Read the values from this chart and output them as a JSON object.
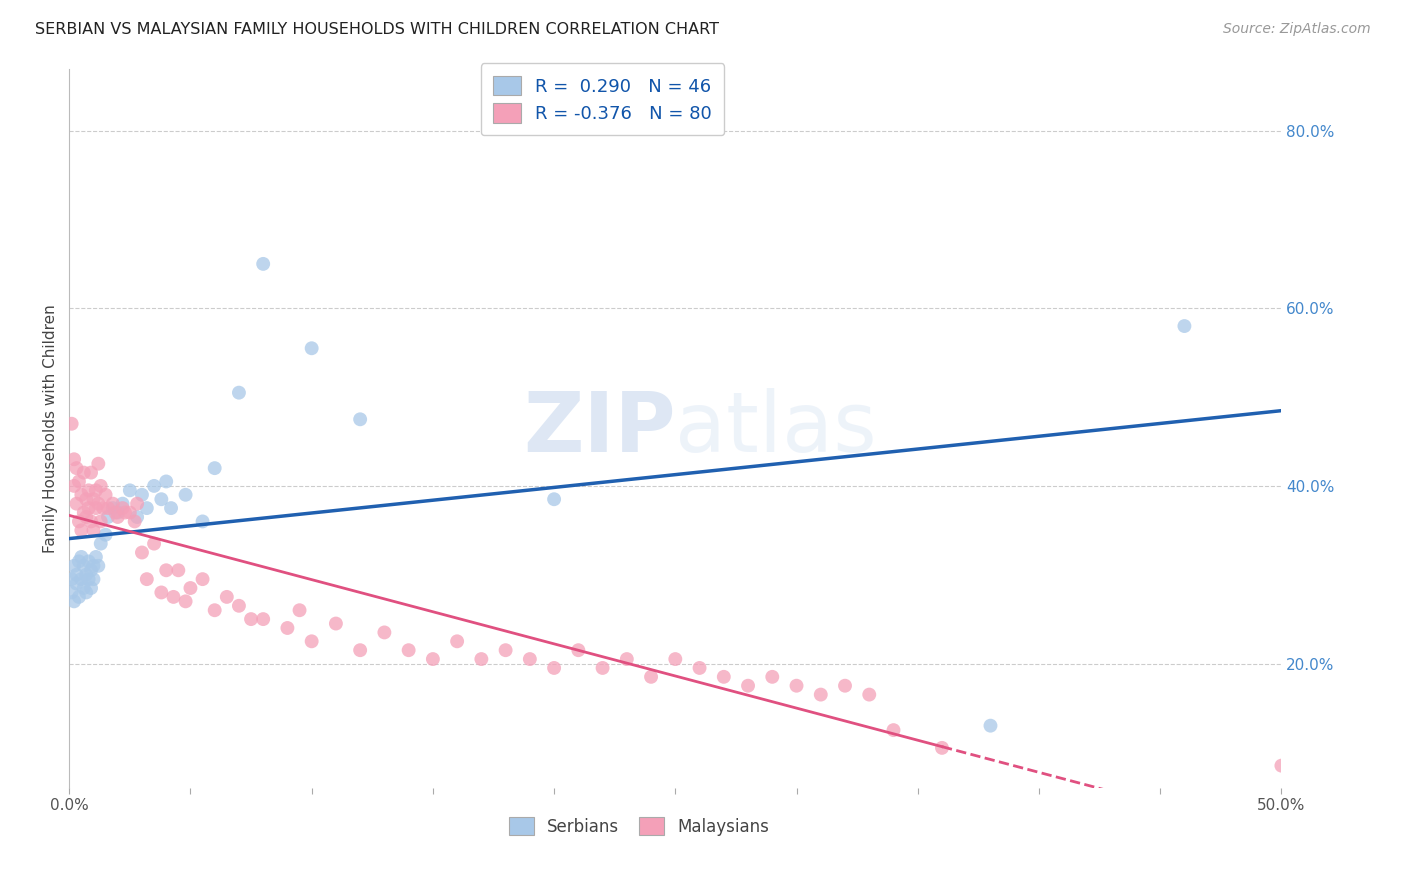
{
  "title": "SERBIAN VS MALAYSIAN FAMILY HOUSEHOLDS WITH CHILDREN CORRELATION CHART",
  "source": "Source: ZipAtlas.com",
  "ylabel": "Family Households with Children",
  "xlim": [
    0.0,
    0.5
  ],
  "ylim": [
    0.06,
    0.87
  ],
  "xticks": [
    0.0,
    0.05,
    0.1,
    0.15,
    0.2,
    0.25,
    0.3,
    0.35,
    0.4,
    0.45,
    0.5
  ],
  "xtick_labels_show": [
    "0.0%",
    "",
    "",
    "",
    "",
    "",
    "",
    "",
    "",
    "",
    "50.0%"
  ],
  "yticks_right": [
    0.2,
    0.4,
    0.6,
    0.8
  ],
  "ytick_labels_right": [
    "20.0%",
    "40.0%",
    "60.0%",
    "80.0%"
  ],
  "serbian_color": "#a8c8e8",
  "malaysian_color": "#f4a0b8",
  "serbian_line_color": "#2060b0",
  "malaysian_line_color": "#e05080",
  "watermark": "ZIPatlas",
  "background_color": "#ffffff",
  "grid_color": "#cccccc",
  "serbian_R": 0.29,
  "serbian_N": 46,
  "malaysian_R": -0.376,
  "malaysian_N": 80,
  "serbian_x": [
    0.001,
    0.001,
    0.002,
    0.002,
    0.003,
    0.003,
    0.004,
    0.004,
    0.005,
    0.005,
    0.006,
    0.006,
    0.007,
    0.007,
    0.008,
    0.008,
    0.009,
    0.009,
    0.01,
    0.01,
    0.011,
    0.012,
    0.013,
    0.015,
    0.016,
    0.018,
    0.02,
    0.022,
    0.025,
    0.028,
    0.03,
    0.032,
    0.035,
    0.038,
    0.04,
    0.042,
    0.048,
    0.055,
    0.06,
    0.07,
    0.08,
    0.1,
    0.12,
    0.2,
    0.38,
    0.46
  ],
  "serbian_y": [
    0.295,
    0.28,
    0.31,
    0.27,
    0.3,
    0.29,
    0.315,
    0.275,
    0.295,
    0.32,
    0.285,
    0.31,
    0.3,
    0.28,
    0.315,
    0.295,
    0.305,
    0.285,
    0.31,
    0.295,
    0.32,
    0.31,
    0.335,
    0.345,
    0.365,
    0.375,
    0.37,
    0.38,
    0.395,
    0.365,
    0.39,
    0.375,
    0.4,
    0.385,
    0.405,
    0.375,
    0.39,
    0.36,
    0.42,
    0.505,
    0.65,
    0.555,
    0.475,
    0.385,
    0.13,
    0.58
  ],
  "malaysian_x": [
    0.001,
    0.002,
    0.002,
    0.003,
    0.003,
    0.004,
    0.004,
    0.005,
    0.005,
    0.006,
    0.006,
    0.007,
    0.007,
    0.008,
    0.008,
    0.009,
    0.009,
    0.01,
    0.01,
    0.011,
    0.011,
    0.012,
    0.012,
    0.013,
    0.013,
    0.014,
    0.015,
    0.016,
    0.018,
    0.019,
    0.02,
    0.022,
    0.023,
    0.025,
    0.027,
    0.028,
    0.03,
    0.032,
    0.035,
    0.038,
    0.04,
    0.043,
    0.045,
    0.048,
    0.05,
    0.055,
    0.06,
    0.065,
    0.07,
    0.075,
    0.08,
    0.09,
    0.095,
    0.1,
    0.11,
    0.12,
    0.13,
    0.14,
    0.15,
    0.16,
    0.17,
    0.18,
    0.19,
    0.2,
    0.21,
    0.22,
    0.23,
    0.24,
    0.25,
    0.26,
    0.27,
    0.28,
    0.29,
    0.3,
    0.31,
    0.32,
    0.33,
    0.34,
    0.36,
    0.5
  ],
  "malaysian_y": [
    0.47,
    0.4,
    0.43,
    0.38,
    0.42,
    0.36,
    0.405,
    0.35,
    0.39,
    0.37,
    0.415,
    0.385,
    0.365,
    0.395,
    0.375,
    0.36,
    0.415,
    0.35,
    0.385,
    0.375,
    0.395,
    0.38,
    0.425,
    0.36,
    0.4,
    0.375,
    0.39,
    0.375,
    0.38,
    0.37,
    0.365,
    0.375,
    0.37,
    0.37,
    0.36,
    0.38,
    0.325,
    0.295,
    0.335,
    0.28,
    0.305,
    0.275,
    0.305,
    0.27,
    0.285,
    0.295,
    0.26,
    0.275,
    0.265,
    0.25,
    0.25,
    0.24,
    0.26,
    0.225,
    0.245,
    0.215,
    0.235,
    0.215,
    0.205,
    0.225,
    0.205,
    0.215,
    0.205,
    0.195,
    0.215,
    0.195,
    0.205,
    0.185,
    0.205,
    0.195,
    0.185,
    0.175,
    0.185,
    0.175,
    0.165,
    0.175,
    0.165,
    0.125,
    0.105,
    0.085
  ]
}
